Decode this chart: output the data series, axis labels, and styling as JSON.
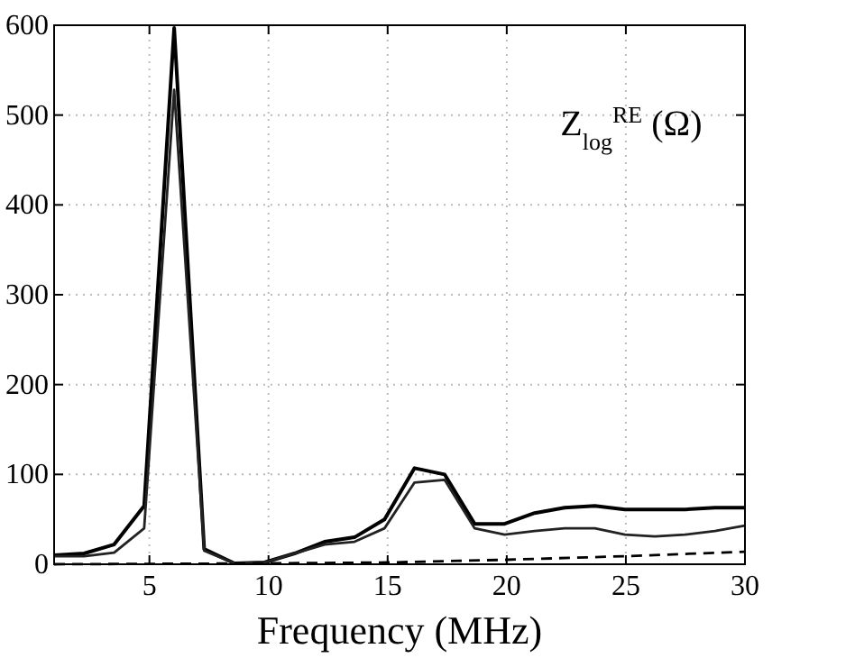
{
  "chart_data": {
    "type": "line",
    "xlabel": "Frequency (MHz)",
    "annotations": [
      "Z$_{log}$$^{RE}$ (Ω)"
    ],
    "x": [
      1,
      2.26,
      3.52,
      4.78,
      6.04,
      7.3,
      8.57,
      9.83,
      11.09,
      12.35,
      13.61,
      14.87,
      16.13,
      17.39,
      18.65,
      19.91,
      21.17,
      22.43,
      23.7,
      24.96,
      26.22,
      27.48,
      28.74,
      30
    ],
    "xlim": [
      1,
      30
    ],
    "xticks": [
      5,
      10,
      15,
      20,
      25,
      30
    ],
    "ylim": [
      0,
      600
    ],
    "yticks": [
      0,
      100,
      200,
      300,
      400,
      500,
      600
    ],
    "grid": true,
    "line_style": "solid",
    "series": [
      {
        "color": "#000000",
        "values": [
          10,
          12,
          22,
          65,
          597,
          17,
          1,
          2,
          12,
          25,
          30,
          50,
          107,
          100,
          45,
          45,
          57,
          63,
          65,
          61,
          61,
          61,
          63,
          63
        ]
      },
      {
        "color": "#222222",
        "values": [
          9,
          9,
          13,
          40,
          528,
          15,
          1,
          2,
          12,
          22,
          25,
          40,
          91,
          94,
          40,
          33,
          37,
          40,
          40,
          33,
          31,
          33,
          37,
          43
        ]
      },
      {
        "color": "#000000",
        "line_style": "dashed",
        "x": [
          1,
          10,
          15,
          20,
          25,
          30
        ],
        "values": [
          0,
          1,
          2,
          5,
          9,
          14
        ]
      }
    ]
  }
}
